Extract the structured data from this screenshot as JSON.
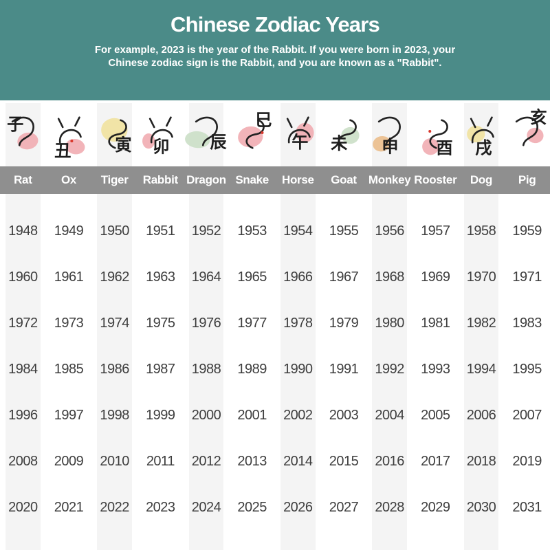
{
  "header": {
    "title": "Chinese Zodiac Years",
    "subtitle_line1": "For example, 2023 is the year of the Rabbit. If you were born in 2023, your",
    "subtitle_line2": "Chinese zodiac sign is the Rabbit, and you are known as a \"Rabbit\"."
  },
  "colors": {
    "header_bg": "#4B8B88",
    "name_band_bg": "#8F8F8F",
    "stripe_gray": "#F4F4F4",
    "year_text": "#3D3D3D",
    "blob_pink": "#F1ACB1",
    "blob_yellow": "#F1E29F",
    "blob_green": "#CBDFC7",
    "blob_tan": "#EBBE8C",
    "accent_red": "#D8362A"
  },
  "zodiac": {
    "columns": [
      {
        "name": "Rat",
        "char": "子",
        "blob": "#F1ACB1"
      },
      {
        "name": "Ox",
        "char": "丑",
        "blob": "#F1ACB1"
      },
      {
        "name": "Tiger",
        "char": "寅",
        "blob": "#F1E29F"
      },
      {
        "name": "Rabbit",
        "char": "卯",
        "blob": "#F1ACB1"
      },
      {
        "name": "Dragon",
        "char": "辰",
        "blob": "#CBDFC7"
      },
      {
        "name": "Snake",
        "char": "巳",
        "blob": "#F1ACB1"
      },
      {
        "name": "Horse",
        "char": "午",
        "blob": "#F1ACB1"
      },
      {
        "name": "Goat",
        "char": "未",
        "blob": "#CBDFC7"
      },
      {
        "name": "Monkey",
        "char": "申",
        "blob": "#EBBE8C"
      },
      {
        "name": "Rooster",
        "char": "酉",
        "blob": "#F1ACB1"
      },
      {
        "name": "Dog",
        "char": "戌",
        "blob": "#F1E29F"
      },
      {
        "name": "Pig",
        "char": "亥",
        "blob": "#F1ACB1"
      }
    ]
  },
  "chart_data": {
    "type": "table",
    "title": "Chinese Zodiac Years",
    "columns": [
      "Rat",
      "Ox",
      "Tiger",
      "Rabbit",
      "Dragon",
      "Snake",
      "Horse",
      "Goat",
      "Monkey",
      "Rooster",
      "Dog",
      "Pig"
    ],
    "rows": [
      [
        1948,
        1949,
        1950,
        1951,
        1952,
        1953,
        1954,
        1955,
        1956,
        1957,
        1958,
        1959
      ],
      [
        1960,
        1961,
        1962,
        1963,
        1964,
        1965,
        1966,
        1967,
        1968,
        1969,
        1970,
        1971
      ],
      [
        1972,
        1973,
        1974,
        1975,
        1976,
        1977,
        1978,
        1979,
        1980,
        1981,
        1982,
        1983
      ],
      [
        1984,
        1985,
        1986,
        1987,
        1988,
        1989,
        1990,
        1991,
        1992,
        1993,
        1994,
        1995
      ],
      [
        1996,
        1997,
        1998,
        1999,
        2000,
        2001,
        2002,
        2003,
        2004,
        2005,
        2006,
        2007
      ],
      [
        2008,
        2009,
        2010,
        2011,
        2012,
        2013,
        2014,
        2015,
        2016,
        2017,
        2018,
        2019
      ],
      [
        2020,
        2021,
        2022,
        2023,
        2024,
        2025,
        2026,
        2027,
        2028,
        2029,
        2030,
        2031
      ]
    ]
  }
}
